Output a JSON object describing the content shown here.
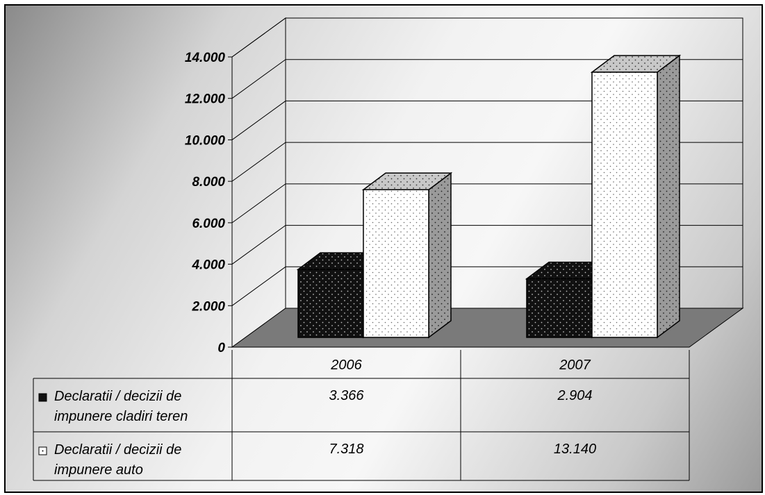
{
  "chart_data": {
    "type": "bar",
    "categories": [
      "2006",
      "2007"
    ],
    "series": [
      {
        "name": "Declaratii / decizii de impunere cladiri teren",
        "legend_lines": [
          "Declaratii / decizii de",
          "impunere cladiri teren"
        ],
        "values": [
          3366,
          2904
        ],
        "labels": [
          "3.366",
          "2.904"
        ],
        "color": "#1a1a1a"
      },
      {
        "name": "Declaratii / decizii de impunere auto",
        "legend_lines": [
          "Declaratii / decizii de",
          "impunere auto"
        ],
        "values": [
          7318,
          13140
        ],
        "labels": [
          "7.318",
          "13.140"
        ],
        "color": "#ffffff"
      }
    ],
    "ylim": [
      0,
      14000
    ],
    "yticks": [
      0,
      2000,
      4000,
      6000,
      8000,
      10000,
      12000,
      14000
    ],
    "ytick_labels": [
      "0",
      "2.000",
      "4.000",
      "6.000",
      "8.000",
      "10.000",
      "12.000",
      "14.000"
    ],
    "grid": true,
    "three_d": true,
    "data_table": true
  }
}
